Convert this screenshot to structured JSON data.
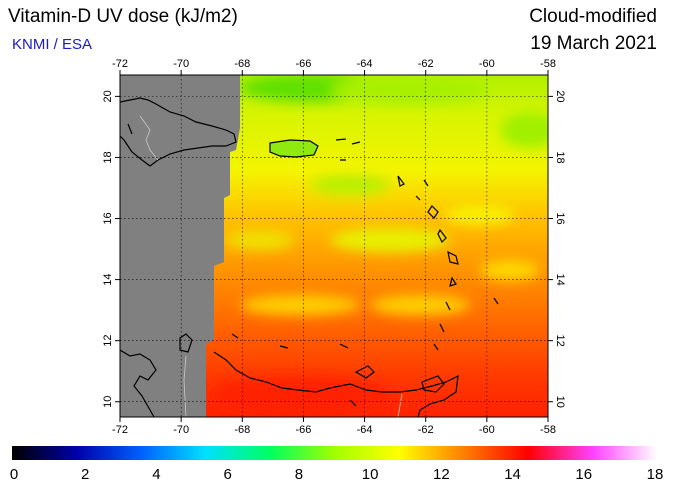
{
  "header": {
    "title": "Vitamin-D UV dose (kJ/m2)",
    "credit": "KNMI / ESA",
    "product": "Cloud-modified",
    "date": "19 March 2021"
  },
  "map": {
    "lon_ticks": [
      "-72",
      "-70",
      "-68",
      "-66",
      "-64",
      "-62",
      "-60",
      "-58"
    ],
    "lat_ticks": [
      "10",
      "12",
      "14",
      "16",
      "18",
      "20"
    ],
    "no_data_color": "#808080"
  },
  "colorbar": {
    "labels": [
      "0",
      "2",
      "4",
      "6",
      "8",
      "10",
      "12",
      "14",
      "16",
      "18"
    ],
    "stops": [
      "#000000",
      "#0000aa",
      "#0060ff",
      "#00e0ff",
      "#00ff60",
      "#a0ff00",
      "#ffff00",
      "#ff8000",
      "#ff0000",
      "#ff40ff",
      "#ffffff"
    ]
  }
}
